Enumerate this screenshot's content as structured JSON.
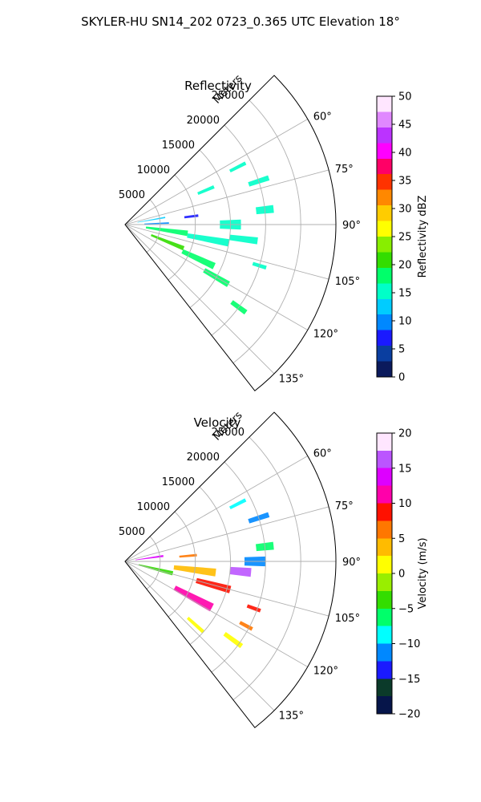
{
  "figure": {
    "suptitle": "SKYLER-HU  SN14_202  0723_0.365 UTC Elevation 18°"
  },
  "chart_data": [
    {
      "type": "polar-sector",
      "title": "Reflectivity",
      "r_axis_label": "Meters",
      "r_ticks": [
        5000,
        10000,
        15000,
        20000,
        25000
      ],
      "r_tick_labels": [
        "5000",
        "10000",
        "15000",
        "20000",
        "25000"
      ],
      "r_lim": [
        0,
        30000
      ],
      "theta_ticks": [
        60,
        75,
        90,
        105,
        120,
        135
      ],
      "theta_tick_labels": [
        "60°",
        "75°",
        "90°",
        "105°",
        "120°",
        "135°"
      ],
      "theta_lim": [
        45,
        142
      ],
      "grid": true,
      "colorbar": {
        "label": "Reflectivity dBZ",
        "min": 0,
        "max": 50,
        "ticks": [
          0,
          5,
          10,
          15,
          20,
          25,
          30,
          35,
          40,
          45,
          50
        ],
        "tick_labels": [
          "0",
          "5",
          "10",
          "15",
          "20",
          "25",
          "30",
          "35",
          "40",
          "45",
          "50"
        ]
      },
      "blobs": [
        {
          "theta": 80,
          "r": 3800,
          "dtheta": 2,
          "dr": 4000,
          "value": 12
        },
        {
          "theta": 83,
          "r": 9500,
          "dtheta": 2,
          "dr": 2000,
          "value": 6
        },
        {
          "theta": 88,
          "r": 4500,
          "dtheta": 2,
          "dr": 3500,
          "value": 11
        },
        {
          "theta": 98,
          "r": 6000,
          "dtheta": 5,
          "dr": 6000,
          "value": 18
        },
        {
          "theta": 100,
          "r": 12000,
          "dtheta": 4,
          "dr": 6000,
          "value": 16
        },
        {
          "theta": 97,
          "r": 17000,
          "dtheta": 3,
          "dr": 4000,
          "value": 15
        },
        {
          "theta": 112,
          "r": 6500,
          "dtheta": 4,
          "dr": 5000,
          "value": 20
        },
        {
          "theta": 115,
          "r": 11500,
          "dtheta": 4,
          "dr": 5000,
          "value": 19
        },
        {
          "theta": 120,
          "r": 15000,
          "dtheta": 3,
          "dr": 4000,
          "value": 17
        },
        {
          "theta": 90,
          "r": 15000,
          "dtheta": 5,
          "dr": 3000,
          "value": 16
        },
        {
          "theta": 84,
          "r": 20000,
          "dtheta": 3,
          "dr": 2500,
          "value": 15
        },
        {
          "theta": 72,
          "r": 20000,
          "dtheta": 2,
          "dr": 3000,
          "value": 15
        },
        {
          "theta": 63,
          "r": 18000,
          "dtheta": 1.5,
          "dr": 2500,
          "value": 16
        },
        {
          "theta": 67,
          "r": 12500,
          "dtheta": 2,
          "dr": 2500,
          "value": 14
        },
        {
          "theta": 126,
          "r": 20000,
          "dtheta": 2,
          "dr": 2500,
          "value": 17
        },
        {
          "theta": 107,
          "r": 20000,
          "dtheta": 1.5,
          "dr": 2000,
          "value": 14
        }
      ]
    },
    {
      "type": "polar-sector",
      "title": "Velocity",
      "r_axis_label": "Meters",
      "r_ticks": [
        5000,
        10000,
        15000,
        20000,
        25000
      ],
      "r_tick_labels": [
        "5000",
        "10000",
        "15000",
        "20000",
        "25000"
      ],
      "r_lim": [
        0,
        30000
      ],
      "theta_ticks": [
        60,
        75,
        90,
        105,
        120,
        135
      ],
      "theta_tick_labels": [
        "60°",
        "75°",
        "90°",
        "105°",
        "120°",
        "135°"
      ],
      "theta_lim": [
        45,
        142
      ],
      "grid": true,
      "colorbar": {
        "label": "Velocity (m/s)",
        "min": -20,
        "max": 20,
        "ticks": [
          -20,
          -15,
          -10,
          -5,
          0,
          5,
          10,
          15,
          20
        ],
        "tick_labels": [
          "−20",
          "−15",
          "−10",
          "−5",
          "0",
          "5",
          "10",
          "15",
          "20"
        ]
      },
      "blobs": [
        {
          "theta": 82,
          "r": 3500,
          "dtheta": 3,
          "dr": 4000,
          "value": 14
        },
        {
          "theta": 85,
          "r": 9000,
          "dtheta": 2,
          "dr": 2500,
          "value": 7
        },
        {
          "theta": 104,
          "r": 4500,
          "dtheta": 5,
          "dr": 5000,
          "value": -4
        },
        {
          "theta": 97,
          "r": 10000,
          "dtheta": 5,
          "dr": 6000,
          "value": 3
        },
        {
          "theta": 105,
          "r": 13000,
          "dtheta": 4,
          "dr": 5000,
          "value": 9
        },
        {
          "theta": 118,
          "r": 11000,
          "dtheta": 5,
          "dr": 6000,
          "value": 11
        },
        {
          "theta": 95,
          "r": 16500,
          "dtheta": 4,
          "dr": 3000,
          "value": 15
        },
        {
          "theta": 90,
          "r": 18500,
          "dtheta": 4,
          "dr": 3000,
          "value": -12
        },
        {
          "theta": 84,
          "r": 20000,
          "dtheta": 3,
          "dr": 2500,
          "value": -7
        },
        {
          "theta": 72,
          "r": 20000,
          "dtheta": 2,
          "dr": 3000,
          "value": -11
        },
        {
          "theta": 63,
          "r": 18000,
          "dtheta": 1.5,
          "dr": 2500,
          "value": -8
        },
        {
          "theta": 126,
          "r": 19000,
          "dtheta": 2,
          "dr": 3000,
          "value": 2
        },
        {
          "theta": 132,
          "r": 13500,
          "dtheta": 2,
          "dr": 3000,
          "value": 1
        },
        {
          "theta": 110,
          "r": 19500,
          "dtheta": 1.5,
          "dr": 2000,
          "value": 8
        },
        {
          "theta": 118,
          "r": 19500,
          "dtheta": 1.5,
          "dr": 2000,
          "value": 7
        }
      ]
    }
  ],
  "colors": {
    "reflectivity_scale": [
      "#0b1a5c",
      "#0a3ea0",
      "#1a1aff",
      "#0088ff",
      "#00ccff",
      "#00ffc8",
      "#00ff6a",
      "#33dd00",
      "#88ee00",
      "#ffff00",
      "#ffcc00",
      "#ff8800",
      "#ff3300",
      "#ff0066",
      "#ff00ff",
      "#bb33ff",
      "#e088ff",
      "#ffe6ff"
    ],
    "velocity_scale": [
      "#06154a",
      "#0b3a2a",
      "#1a1aff",
      "#0088ff",
      "#00ffff",
      "#00ff6a",
      "#33dd00",
      "#99ee00",
      "#ffff00",
      "#ffbb00",
      "#ff7700",
      "#ff1100",
      "#ff00aa",
      "#dd00ff",
      "#bb55ff",
      "#ffe6ff"
    ],
    "grid": "#b0b0b0"
  }
}
